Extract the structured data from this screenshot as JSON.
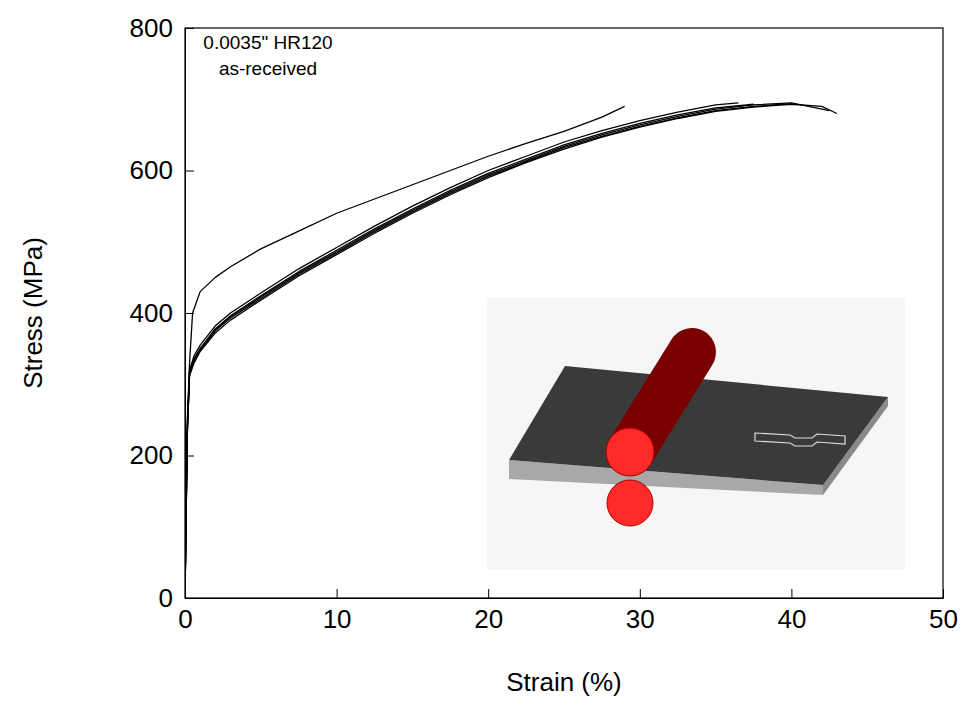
{
  "chart_data": {
    "type": "line",
    "x_label": "Strain (%)",
    "y_label": "Stress (MPa)",
    "annotations": [
      "0.0035\" HR120",
      "as-received"
    ],
    "xlim": [
      0,
      50
    ],
    "xticks": [
      0,
      10,
      20,
      30,
      40,
      50
    ],
    "ylim": [
      0,
      800
    ],
    "yticks": [
      0,
      200,
      400,
      600,
      800
    ],
    "grid": false,
    "series": [
      {
        "color": "#000000",
        "x": [
          0,
          0.15,
          0.3,
          0.5,
          1,
          2,
          3,
          5,
          7.5,
          10,
          12.5,
          15,
          17.5,
          20,
          22.5,
          25,
          27.5,
          29
        ],
        "values": [
          0,
          250,
          330,
          400,
          430,
          450,
          465,
          490,
          515,
          540,
          560,
          580,
          600,
          620,
          638,
          655,
          675,
          690
        ]
      },
      {
        "color": "#000000",
        "x": [
          0,
          0.15,
          0.3,
          0.6,
          1,
          2,
          3,
          5,
          7.5,
          10,
          12.5,
          15,
          17.5,
          20,
          22.5,
          25,
          27.5,
          30,
          32.5,
          35,
          36.5
        ],
        "values": [
          0,
          240,
          320,
          340,
          355,
          382,
          400,
          428,
          462,
          492,
          522,
          550,
          576,
          600,
          620,
          640,
          656,
          670,
          682,
          692,
          695
        ]
      },
      {
        "color": "#000000",
        "x": [
          0,
          0.15,
          0.3,
          0.6,
          1,
          2,
          3,
          5,
          7.5,
          10,
          12.5,
          15,
          17.5,
          20,
          22.5,
          25,
          27.5,
          30,
          32.5,
          35,
          37.5
        ],
        "values": [
          0,
          235,
          318,
          336,
          350,
          378,
          396,
          424,
          458,
          488,
          518,
          546,
          572,
          596,
          616,
          636,
          652,
          666,
          678,
          688,
          693
        ]
      },
      {
        "color": "#000000",
        "x": [
          0,
          0.15,
          0.3,
          0.6,
          1,
          2,
          3,
          5,
          7.5,
          10,
          12.5,
          15,
          17.5,
          20,
          22.5,
          25,
          27.5,
          30,
          32.5,
          35,
          37.5,
          40
        ],
        "values": [
          0,
          230,
          315,
          333,
          348,
          375,
          393,
          420,
          454,
          484,
          514,
          542,
          568,
          592,
          612,
          632,
          648,
          662,
          674,
          684,
          690,
          694
        ]
      },
      {
        "color": "#000000",
        "x": [
          0,
          0.15,
          0.3,
          0.6,
          1,
          2,
          3,
          5,
          7.5,
          10,
          12.5,
          15,
          17.5,
          20,
          22.5,
          25,
          27.5,
          30,
          32.5,
          35,
          37.5,
          40,
          42.5
        ],
        "values": [
          0,
          232,
          316,
          334,
          350,
          376,
          395,
          422,
          456,
          486,
          516,
          544,
          570,
          594,
          614,
          634,
          650,
          664,
          676,
          686,
          692,
          695,
          684
        ]
      },
      {
        "color": "#000000",
        "x": [
          0,
          0.15,
          0.3,
          0.6,
          1,
          2,
          3,
          5,
          7.5,
          10,
          12.5,
          15,
          17.5,
          20,
          22.5,
          25,
          27.5,
          30,
          32.5,
          35,
          37.5,
          40,
          42,
          43
        ],
        "values": [
          0,
          228,
          312,
          330,
          346,
          372,
          390,
          418,
          452,
          482,
          512,
          540,
          566,
          590,
          611,
          630,
          647,
          661,
          673,
          683,
          689,
          693,
          690,
          680
        ]
      }
    ]
  }
}
